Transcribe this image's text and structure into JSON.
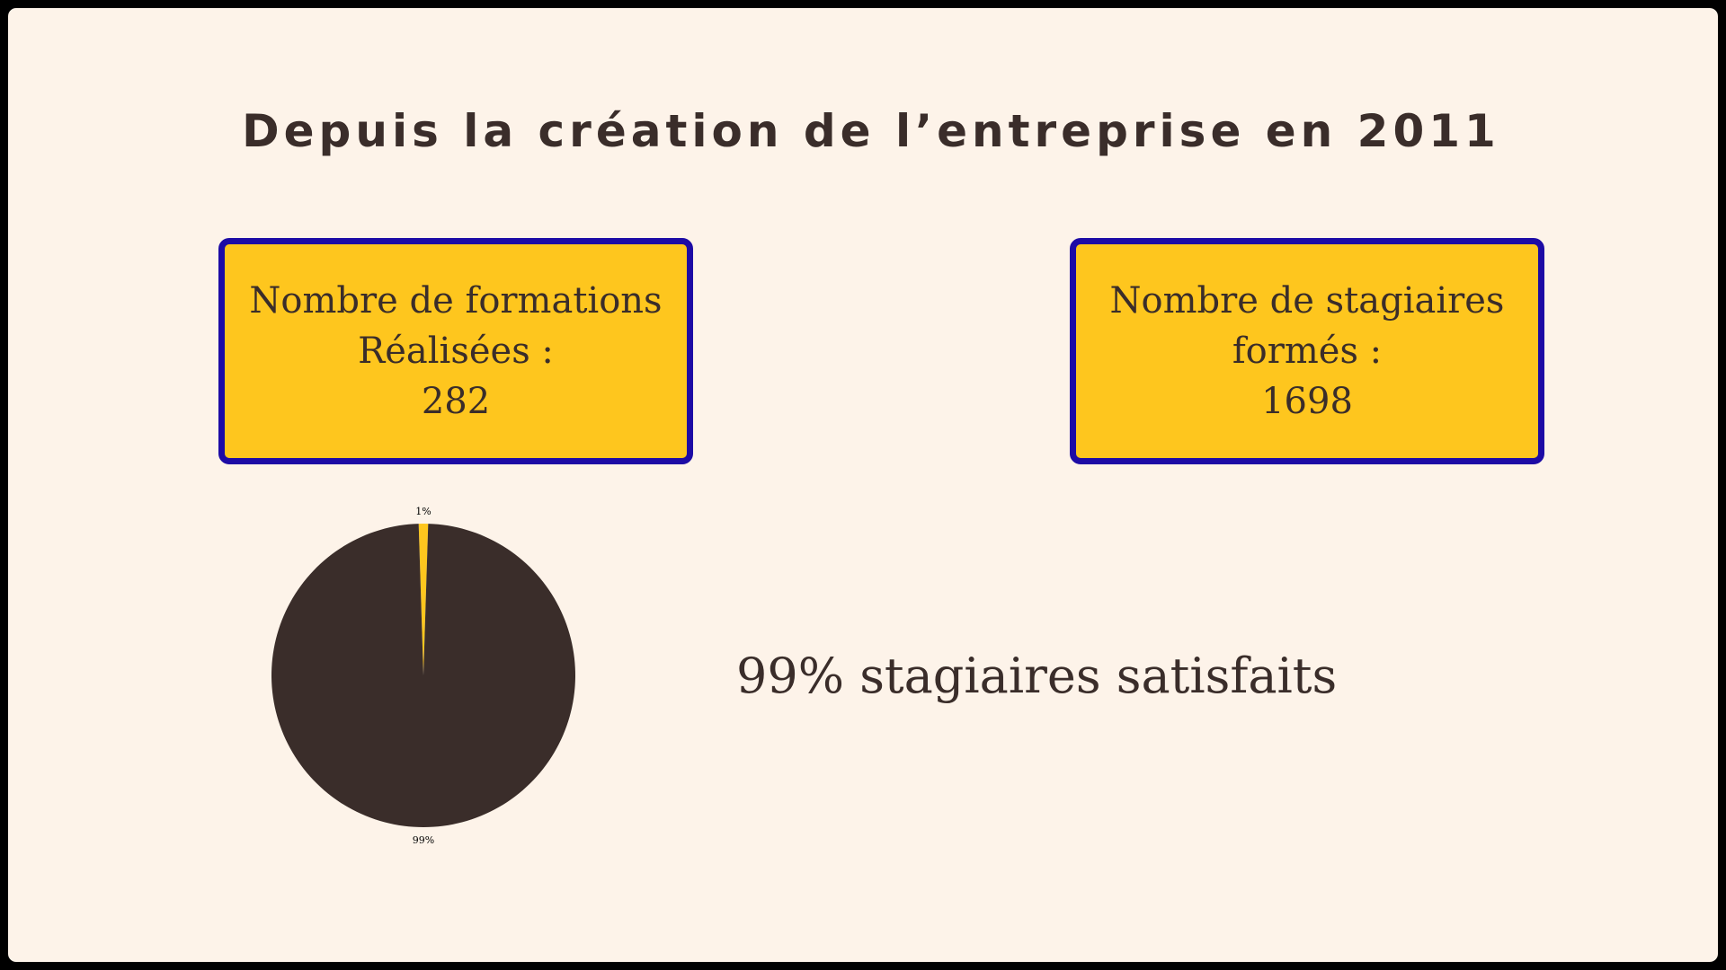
{
  "slide": {
    "title": "Depuis la création de l’entreprise en 2011",
    "cards": [
      {
        "line1": "Nombre de formations",
        "line2": "Réalisées :",
        "value": "282"
      },
      {
        "line1": "Nombre de stagiaires",
        "line2": "formés :",
        "value": "1698"
      }
    ],
    "satisfaction_text": "99% stagiaires satisfaits"
  },
  "colors": {
    "background": "#fdf3e9",
    "card_fill": "#fec61e",
    "card_border": "#1d0ba5",
    "text": "#3a2d2a",
    "pie_main": "#3a2d2a",
    "pie_minor": "#fec61e"
  },
  "chart_data": {
    "type": "pie",
    "title": "",
    "slices": [
      {
        "label": "99%",
        "value": 99,
        "color": "#3a2d2a"
      },
      {
        "label": "1%",
        "value": 1,
        "color": "#fec61e"
      }
    ]
  }
}
